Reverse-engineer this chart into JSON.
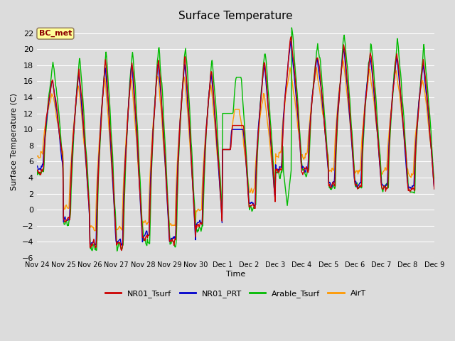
{
  "title": "Surface Temperature",
  "ylabel": "Surface Temperature (C)",
  "xlabel": "Time",
  "ylim": [
    -6,
    23
  ],
  "yticks": [
    -6,
    -4,
    -2,
    0,
    2,
    4,
    6,
    8,
    10,
    12,
    14,
    16,
    18,
    20,
    22
  ],
  "plot_bg_color": "#dcdcdc",
  "fig_bg_color": "#dcdcdc",
  "series": {
    "NR01_Tsurf": {
      "color": "#cc0000",
      "lw": 1.0
    },
    "NR01_PRT": {
      "color": "#0000cc",
      "lw": 1.0
    },
    "Arable_Tsurf": {
      "color": "#00bb00",
      "lw": 1.0
    },
    "AirT": {
      "color": "#ff9900",
      "lw": 1.0
    }
  },
  "annotation_text": "BC_met",
  "annotation_color": "#8b0000",
  "annotation_bg": "#ffff99",
  "xtick_labels": [
    "Nov 24",
    "Nov 25",
    "Nov 26",
    "Nov 27",
    "Nov 28",
    "Nov 29",
    "Nov 30",
    "Dec 1",
    "Dec 2",
    "Dec 3",
    "Dec 4",
    "Dec 5",
    "Dec 6",
    "Dec 7",
    "Dec 8",
    "Dec 9"
  ],
  "n_points": 720
}
